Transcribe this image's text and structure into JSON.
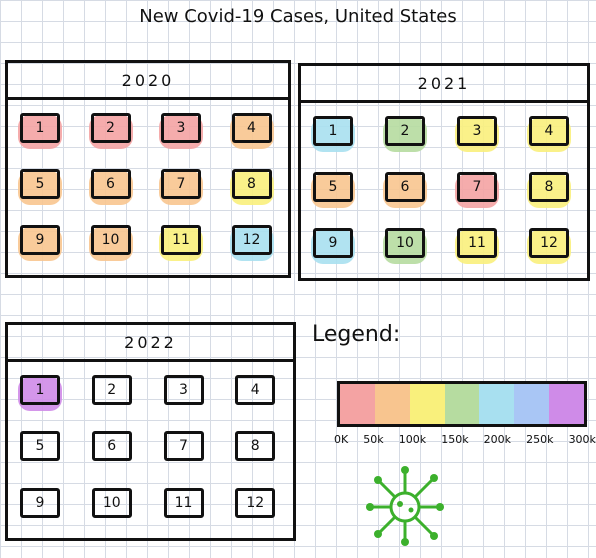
{
  "title": "New Covid-19 Cases, United States",
  "colors": {
    "0k": "#f4a3a3",
    "50k": "#f8c58f",
    "100k": "#f9f07c",
    "150k": "#b6dca0",
    "200k": "#a8e0f0",
    "250k": "#a9c6f5",
    "300k": "#cf8be8",
    "none": "transparent"
  },
  "panels": [
    {
      "year": "2020",
      "months": [
        {
          "label": "1",
          "level": "0k"
        },
        {
          "label": "2",
          "level": "0k"
        },
        {
          "label": "3",
          "level": "0k"
        },
        {
          "label": "4",
          "level": "50k"
        },
        {
          "label": "5",
          "level": "50k"
        },
        {
          "label": "6",
          "level": "50k"
        },
        {
          "label": "7",
          "level": "50k"
        },
        {
          "label": "8",
          "level": "100k"
        },
        {
          "label": "9",
          "level": "50k"
        },
        {
          "label": "10",
          "level": "50k"
        },
        {
          "label": "11",
          "level": "100k"
        },
        {
          "label": "12",
          "level": "200k"
        }
      ]
    },
    {
      "year": "2021",
      "months": [
        {
          "label": "1",
          "level": "200k"
        },
        {
          "label": "2",
          "level": "150k"
        },
        {
          "label": "3",
          "level": "100k"
        },
        {
          "label": "4",
          "level": "100k"
        },
        {
          "label": "5",
          "level": "50k"
        },
        {
          "label": "6",
          "level": "50k"
        },
        {
          "label": "7",
          "level": "0k"
        },
        {
          "label": "8",
          "level": "100k"
        },
        {
          "label": "9",
          "level": "200k"
        },
        {
          "label": "10",
          "level": "150k"
        },
        {
          "label": "11",
          "level": "100k"
        },
        {
          "label": "12",
          "level": "100k"
        }
      ]
    },
    {
      "year": "2022",
      "months": [
        {
          "label": "1",
          "level": "300k"
        },
        {
          "label": "2",
          "level": "none"
        },
        {
          "label": "3",
          "level": "none"
        },
        {
          "label": "4",
          "level": "none"
        },
        {
          "label": "5",
          "level": "none"
        },
        {
          "label": "6",
          "level": "none"
        },
        {
          "label": "7",
          "level": "none"
        },
        {
          "label": "8",
          "level": "none"
        },
        {
          "label": "9",
          "level": "none"
        },
        {
          "label": "10",
          "level": "none"
        },
        {
          "label": "11",
          "level": "none"
        },
        {
          "label": "12",
          "level": "none"
        }
      ]
    }
  ],
  "legend": {
    "title": "Legend:",
    "ticks": [
      "0K",
      "50k",
      "100k",
      "150k",
      "200k",
      "250k",
      "300k"
    ],
    "swatches": [
      "#f4a3a3",
      "#f8c58f",
      "#f9f07c",
      "#b6dca0",
      "#a8e0f0",
      "#a9c6f5",
      "#cf8be8"
    ]
  },
  "decoration": {
    "virus_color": "#3cb02c"
  }
}
